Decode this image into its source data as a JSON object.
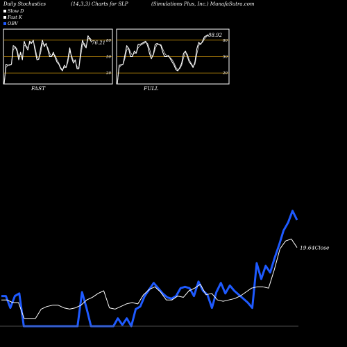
{
  "header": {
    "left": "Daily Stochastics",
    "center": "(14,3,3) Charts for SLP",
    "right": "(Simulations Plus, Inc.) MunafaSutra.com"
  },
  "legend": [
    {
      "label": "Slow  D",
      "color": "#ffffff"
    },
    {
      "label": "Fast K",
      "color": "#ffffff"
    },
    {
      "label": "OBV",
      "color": "#1e5aff"
    }
  ],
  "chart_data": [
    {
      "type": "line",
      "name": "FAST",
      "ylim": [
        0,
        100
      ],
      "levels": [
        20,
        50,
        80
      ],
      "level_labels": [
        "20",
        "50",
        "80"
      ],
      "last_value_label": "76.21",
      "series": [
        {
          "values": [
            0,
            36,
            34,
            35,
            36,
            70,
            68,
            60,
            44,
            58,
            44,
            78,
            68,
            62,
            78,
            74,
            80,
            60,
            44,
            45,
            64,
            80,
            68,
            74,
            62,
            50,
            50,
            58,
            48,
            40,
            36,
            28,
            24,
            34,
            30,
            46,
            66,
            48,
            38,
            44,
            28,
            28,
            60,
            80,
            70,
            66,
            88,
            82,
            76
          ]
        },
        {
          "values": [
            0,
            30,
            34,
            34,
            35,
            62,
            68,
            64,
            50,
            54,
            48,
            70,
            70,
            66,
            74,
            76,
            78,
            66,
            50,
            46,
            56,
            74,
            72,
            72,
            66,
            56,
            50,
            54,
            52,
            44,
            38,
            30,
            26,
            30,
            30,
            40,
            60,
            52,
            42,
            42,
            32,
            28,
            50,
            72,
            74,
            68,
            82,
            84,
            80
          ]
        }
      ]
    },
    {
      "type": "line",
      "name": "FULL",
      "ylim": [
        0,
        100
      ],
      "levels": [
        20,
        50,
        80
      ],
      "level_labels": [
        "20",
        "50",
        "80"
      ],
      "last_value_label": "88.92",
      "series": [
        {
          "values": [
            0,
            34,
            35,
            36,
            52,
            70,
            64,
            50,
            50,
            60,
            56,
            72,
            72,
            74,
            76,
            78,
            70,
            56,
            46,
            54,
            72,
            74,
            72,
            70,
            58,
            50,
            50,
            52,
            46,
            40,
            34,
            26,
            24,
            30,
            38,
            56,
            60,
            50,
            40,
            36,
            30,
            40,
            64,
            76,
            72,
            78,
            86,
            88,
            90
          ]
        },
        {
          "values": [
            0,
            30,
            34,
            35,
            46,
            62,
            66,
            58,
            52,
            56,
            56,
            66,
            70,
            72,
            74,
            76,
            74,
            64,
            52,
            52,
            64,
            72,
            72,
            72,
            64,
            56,
            52,
            50,
            48,
            44,
            38,
            30,
            26,
            28,
            34,
            48,
            58,
            54,
            44,
            38,
            32,
            36,
            54,
            70,
            74,
            76,
            82,
            86,
            89
          ]
        }
      ]
    },
    {
      "type": "line",
      "name": "OBV and price",
      "last_value_label": "19.64",
      "last_value_suffix": "Close",
      "series": [
        {
          "values": [
            40,
            40,
            36,
            36,
            12,
            12,
            12,
            26,
            30,
            32,
            32,
            28,
            26,
            28,
            32,
            40,
            44,
            50,
            54,
            28,
            26,
            30,
            34,
            36,
            34,
            48,
            56,
            60,
            52,
            40,
            40,
            46,
            44,
            54,
            58,
            64,
            48,
            50,
            40,
            38,
            40,
            42,
            46,
            52,
            58,
            60,
            60,
            58,
            86,
            118,
            130,
            133,
            120
          ]
        },
        {
          "values": [
            46,
            46,
            28,
            46,
            50,
            0,
            0,
            0,
            0,
            0,
            0,
            0,
            0,
            0,
            0,
            0,
            0,
            0,
            52,
            28,
            0,
            0,
            0,
            0,
            0,
            0,
            12,
            2,
            12,
            0,
            26,
            30,
            46,
            56,
            66,
            58,
            50,
            44,
            42,
            46,
            58,
            60,
            58,
            46,
            68,
            54,
            48,
            28,
            52,
            66,
            50,
            62,
            54,
            48,
            42,
            36,
            28,
            96,
            72,
            92,
            82,
            104,
            124,
            146,
            158,
            176,
            162
          ]
        }
      ]
    }
  ]
}
